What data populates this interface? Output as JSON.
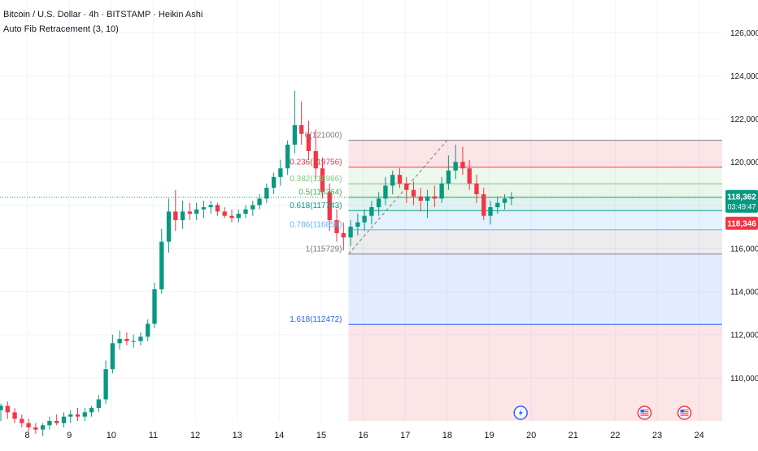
{
  "header": {
    "title": "Bitcoin / U.S. Dollar · 4h · BITSTAMP · Heikin Ashi",
    "indicator": "Auto Fib Retracement (3, 10)"
  },
  "colors": {
    "up": "#089981",
    "down": "#f23645",
    "grid": "#f0f3fa",
    "axis_text": "#131722",
    "price_line": "#089981"
  },
  "chart_data": {
    "type": "candlestick",
    "style": "Heikin Ashi",
    "symbol": "BTCUSD",
    "exchange": "BITSTAMP",
    "timeframe": "4h",
    "grid": true,
    "y_axis": {
      "ticks": [
        110000,
        112000,
        114000,
        116000,
        118000,
        120000,
        122000,
        124000,
        126000
      ],
      "tick_labels": [
        "110,000",
        "112,000",
        "114,000",
        "116,000",
        "118,000",
        "120,000",
        "122,000",
        "124,000",
        "126,000"
      ],
      "range": [
        108000,
        127500
      ]
    },
    "x_axis": {
      "ticks": [
        8,
        9,
        10,
        11,
        12,
        13,
        14,
        15,
        16,
        17,
        18,
        19,
        20,
        21,
        22,
        23,
        24
      ],
      "tick_labels": [
        "8",
        "9",
        "10",
        "11",
        "12",
        "13",
        "14",
        "15",
        "16",
        "17",
        "18",
        "19",
        "20",
        "21",
        "22",
        "23",
        "24"
      ],
      "range": [
        7.35,
        24.55
      ]
    },
    "candles": [
      {
        "t": 7.37,
        "o": 108500,
        "h": 108800,
        "l": 108000,
        "c": 108700
      },
      {
        "t": 7.53,
        "o": 108700,
        "h": 108900,
        "l": 108100,
        "c": 108400
      },
      {
        "t": 7.7,
        "o": 108400,
        "h": 108600,
        "l": 107900,
        "c": 108100
      },
      {
        "t": 7.87,
        "o": 108100,
        "h": 108300,
        "l": 107700,
        "c": 107900
      },
      {
        "t": 8.03,
        "o": 107900,
        "h": 108100,
        "l": 107500,
        "c": 107700
      },
      {
        "t": 8.2,
        "o": 107700,
        "h": 107900,
        "l": 107400,
        "c": 107600
      },
      {
        "t": 8.37,
        "o": 107600,
        "h": 107900,
        "l": 107300,
        "c": 107800
      },
      {
        "t": 8.53,
        "o": 107800,
        "h": 108200,
        "l": 107600,
        "c": 108000
      },
      {
        "t": 8.7,
        "o": 108000,
        "h": 108300,
        "l": 107800,
        "c": 107900
      },
      {
        "t": 8.87,
        "o": 107900,
        "h": 108400,
        "l": 107700,
        "c": 108200
      },
      {
        "t": 9.03,
        "o": 108200,
        "h": 108500,
        "l": 107900,
        "c": 108300
      },
      {
        "t": 9.2,
        "o": 108300,
        "h": 108600,
        "l": 108000,
        "c": 108200
      },
      {
        "t": 9.37,
        "o": 108200,
        "h": 108600,
        "l": 108000,
        "c": 108400
      },
      {
        "t": 9.53,
        "o": 108400,
        "h": 108700,
        "l": 108200,
        "c": 108600
      },
      {
        "t": 9.7,
        "o": 108600,
        "h": 109200,
        "l": 108400,
        "c": 109000
      },
      {
        "t": 9.87,
        "o": 109000,
        "h": 110800,
        "l": 108800,
        "c": 110400
      },
      {
        "t": 10.03,
        "o": 110400,
        "h": 112000,
        "l": 110200,
        "c": 111600
      },
      {
        "t": 10.2,
        "o": 111600,
        "h": 112200,
        "l": 111300,
        "c": 111800
      },
      {
        "t": 10.37,
        "o": 111800,
        "h": 112100,
        "l": 111500,
        "c": 111700
      },
      {
        "t": 10.53,
        "o": 111700,
        "h": 112000,
        "l": 111400,
        "c": 111700
      },
      {
        "t": 10.7,
        "o": 111700,
        "h": 112100,
        "l": 111500,
        "c": 111900
      },
      {
        "t": 10.87,
        "o": 111900,
        "h": 112700,
        "l": 111700,
        "c": 112500
      },
      {
        "t": 11.03,
        "o": 112500,
        "h": 114400,
        "l": 112300,
        "c": 114100
      },
      {
        "t": 11.2,
        "o": 114100,
        "h": 116900,
        "l": 113900,
        "c": 116300
      },
      {
        "t": 11.37,
        "o": 116300,
        "h": 118300,
        "l": 115800,
        "c": 117700
      },
      {
        "t": 11.53,
        "o": 117700,
        "h": 118700,
        "l": 116800,
        "c": 117300
      },
      {
        "t": 11.7,
        "o": 117300,
        "h": 118200,
        "l": 116900,
        "c": 117700
      },
      {
        "t": 11.87,
        "o": 117700,
        "h": 118100,
        "l": 117300,
        "c": 117600
      },
      {
        "t": 12.03,
        "o": 117600,
        "h": 118100,
        "l": 117300,
        "c": 117800
      },
      {
        "t": 12.2,
        "o": 117800,
        "h": 118200,
        "l": 117400,
        "c": 117900
      },
      {
        "t": 12.37,
        "o": 117900,
        "h": 118200,
        "l": 117600,
        "c": 118000
      },
      {
        "t": 12.53,
        "o": 118000,
        "h": 118100,
        "l": 117500,
        "c": 117700
      },
      {
        "t": 12.7,
        "o": 117700,
        "h": 117900,
        "l": 117400,
        "c": 117500
      },
      {
        "t": 12.87,
        "o": 117500,
        "h": 117800,
        "l": 117200,
        "c": 117400
      },
      {
        "t": 13.03,
        "o": 117400,
        "h": 117800,
        "l": 117200,
        "c": 117600
      },
      {
        "t": 13.2,
        "o": 117600,
        "h": 118000,
        "l": 117400,
        "c": 117800
      },
      {
        "t": 13.37,
        "o": 117800,
        "h": 118200,
        "l": 117500,
        "c": 118000
      },
      {
        "t": 13.53,
        "o": 118000,
        "h": 118500,
        "l": 117800,
        "c": 118300
      },
      {
        "t": 13.7,
        "o": 118300,
        "h": 119000,
        "l": 118100,
        "c": 118800
      },
      {
        "t": 13.87,
        "o": 118800,
        "h": 119500,
        "l": 118500,
        "c": 119300
      },
      {
        "t": 14.03,
        "o": 119300,
        "h": 120100,
        "l": 118900,
        "c": 119700
      },
      {
        "t": 14.2,
        "o": 119700,
        "h": 121000,
        "l": 119400,
        "c": 120800
      },
      {
        "t": 14.37,
        "o": 120800,
        "h": 123300,
        "l": 120400,
        "c": 121700
      },
      {
        "t": 14.53,
        "o": 121700,
        "h": 122800,
        "l": 120800,
        "c": 121300
      },
      {
        "t": 14.7,
        "o": 121300,
        "h": 121900,
        "l": 120100,
        "c": 120500
      },
      {
        "t": 14.87,
        "o": 120500,
        "h": 121500,
        "l": 119200,
        "c": 119700
      },
      {
        "t": 15.03,
        "o": 119700,
        "h": 120200,
        "l": 118300,
        "c": 118600
      },
      {
        "t": 15.2,
        "o": 118600,
        "h": 119000,
        "l": 116800,
        "c": 117300
      },
      {
        "t": 15.37,
        "o": 117300,
        "h": 117800,
        "l": 116300,
        "c": 116700
      },
      {
        "t": 15.53,
        "o": 116700,
        "h": 117200,
        "l": 115900,
        "c": 116500
      },
      {
        "t": 15.7,
        "o": 116500,
        "h": 117300,
        "l": 116100,
        "c": 117000
      },
      {
        "t": 15.87,
        "o": 117000,
        "h": 117600,
        "l": 116600,
        "c": 117200
      },
      {
        "t": 16.03,
        "o": 117200,
        "h": 117800,
        "l": 116800,
        "c": 117500
      },
      {
        "t": 16.2,
        "o": 117500,
        "h": 118200,
        "l": 117100,
        "c": 117900
      },
      {
        "t": 16.37,
        "o": 117900,
        "h": 118600,
        "l": 117500,
        "c": 118300
      },
      {
        "t": 16.53,
        "o": 118300,
        "h": 119300,
        "l": 118000,
        "c": 118900
      },
      {
        "t": 16.7,
        "o": 118900,
        "h": 119600,
        "l": 118500,
        "c": 119400
      },
      {
        "t": 16.87,
        "o": 119400,
        "h": 119700,
        "l": 118800,
        "c": 119000
      },
      {
        "t": 17.03,
        "o": 119000,
        "h": 119300,
        "l": 118100,
        "c": 118700
      },
      {
        "t": 17.2,
        "o": 118700,
        "h": 119100,
        "l": 118000,
        "c": 118400
      },
      {
        "t": 17.37,
        "o": 118400,
        "h": 118800,
        "l": 117700,
        "c": 118200
      },
      {
        "t": 17.53,
        "o": 118200,
        "h": 118700,
        "l": 117400,
        "c": 118400
      },
      {
        "t": 17.7,
        "o": 118400,
        "h": 118900,
        "l": 117900,
        "c": 118300
      },
      {
        "t": 17.87,
        "o": 118300,
        "h": 119300,
        "l": 118100,
        "c": 119000
      },
      {
        "t": 18.03,
        "o": 119000,
        "h": 120300,
        "l": 118700,
        "c": 119600
      },
      {
        "t": 18.2,
        "o": 119600,
        "h": 120800,
        "l": 119200,
        "c": 120000
      },
      {
        "t": 18.37,
        "o": 120000,
        "h": 120700,
        "l": 119400,
        "c": 119700
      },
      {
        "t": 18.53,
        "o": 119700,
        "h": 120100,
        "l": 118700,
        "c": 119000
      },
      {
        "t": 18.7,
        "o": 119000,
        "h": 119400,
        "l": 118100,
        "c": 118500
      },
      {
        "t": 18.87,
        "o": 118500,
        "h": 118800,
        "l": 117300,
        "c": 117500
      },
      {
        "t": 19.03,
        "o": 117500,
        "h": 118200,
        "l": 117100,
        "c": 117900
      },
      {
        "t": 19.2,
        "o": 117900,
        "h": 118400,
        "l": 117600,
        "c": 118100
      },
      {
        "t": 19.37,
        "o": 118100,
        "h": 118500,
        "l": 117800,
        "c": 118300
      },
      {
        "t": 19.53,
        "o": 118300,
        "h": 118600,
        "l": 118000,
        "c": 118362
      }
    ],
    "fib_levels": [
      {
        "ratio": "0",
        "value": 121000,
        "label": "0(121000)",
        "color": "#787b86"
      },
      {
        "ratio": "0.236",
        "value": 119756,
        "label": "0.236(119756)",
        "color": "#f23645"
      },
      {
        "ratio": "0.382",
        "value": 118986,
        "label": "0.382(118986)",
        "color": "#81c784"
      },
      {
        "ratio": "0.5",
        "value": 118364,
        "label": "0.5(118364)",
        "color": "#4caf50"
      },
      {
        "ratio": "0.618",
        "value": 117743,
        "label": "0.618(117743)",
        "color": "#089981"
      },
      {
        "ratio": "0.786",
        "value": 116858,
        "label": "0.786(116858)",
        "color": "#64b5f6"
      },
      {
        "ratio": "1",
        "value": 115729,
        "label": "1(115729)",
        "color": "#787b86"
      },
      {
        "ratio": "1.618",
        "value": 112472,
        "label": "1.618(112472)",
        "color": "#2962ff"
      }
    ],
    "fib_bands": [
      {
        "from": 121000,
        "to": 119756,
        "color": "rgba(242,54,69,0.13)"
      },
      {
        "from": 119756,
        "to": 118986,
        "color": "rgba(129,199,132,0.15)"
      },
      {
        "from": 118986,
        "to": 118364,
        "color": "rgba(76,175,80,0.13)"
      },
      {
        "from": 118364,
        "to": 117743,
        "color": "rgba(8,153,129,0.12)"
      },
      {
        "from": 117743,
        "to": 116858,
        "color": "rgba(100,181,246,0.18)"
      },
      {
        "from": 116858,
        "to": 115729,
        "color": "rgba(120,123,134,0.14)"
      },
      {
        "from": 115729,
        "to": 112472,
        "color": "rgba(41,98,255,0.13)"
      },
      {
        "from": 112472,
        "to": 108000,
        "color": "rgba(242,54,69,0.13)"
      }
    ],
    "fib_x_range": [
      15.65,
      24.55
    ],
    "trend_line": {
      "from_x": 15.65,
      "from_y": 115729,
      "to_x": 18.0,
      "to_y": 121000
    },
    "last_price": {
      "value": 118362,
      "label": "118,362",
      "countdown": "03:49:47"
    },
    "bid_label": {
      "value": 118346,
      "label": "118,346"
    },
    "events": [
      {
        "x": 19.75,
        "icon": "lightning-event-icon"
      },
      {
        "x": 22.7,
        "icon": "us-flag-event-icon"
      },
      {
        "x": 23.65,
        "icon": "us-flag-event-icon"
      }
    ]
  }
}
